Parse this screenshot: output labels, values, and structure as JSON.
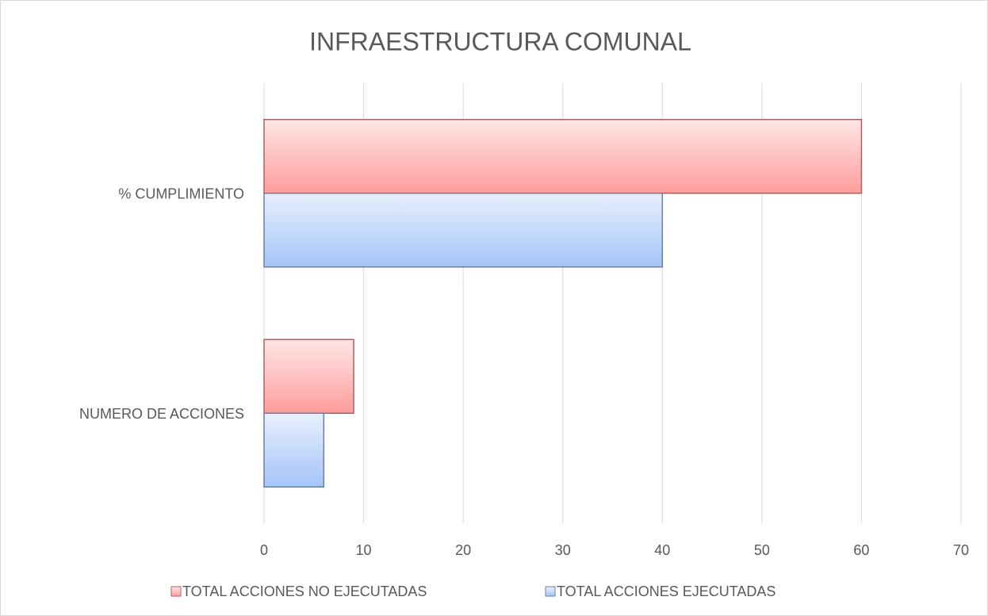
{
  "chart_data": {
    "type": "barh",
    "title": "INFRAESTRUCTURA COMUNAL",
    "categories": [
      "% CUMPLIMIENTO",
      "NUMERO DE ACCIONES"
    ],
    "series": [
      {
        "name": "TOTAL ACCIONES NO EJECUTADAS",
        "color": "#ff9c9c",
        "values": [
          60,
          9
        ]
      },
      {
        "name": "TOTAL ACCIONES EJECUTADAS",
        "color": "#a4c4f8",
        "values": [
          40,
          6
        ]
      }
    ],
    "xlim": [
      0,
      70
    ],
    "xticks": [
      0,
      10,
      20,
      30,
      40,
      50,
      60,
      70
    ],
    "grid": true,
    "legend": "bottom"
  }
}
